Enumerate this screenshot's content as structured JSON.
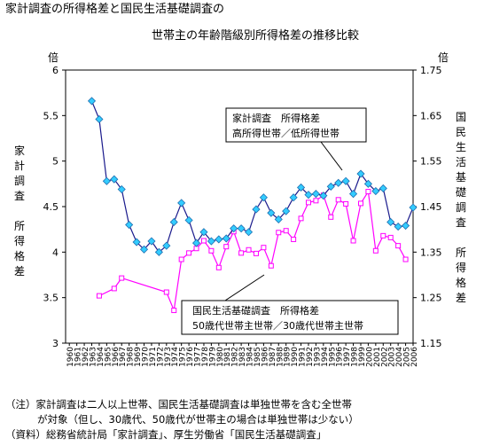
{
  "title_line1": "家計調査の所得格差と国民生活基礎調査の",
  "title_line2": "世帯主の年齢階級別所得格差の推移比較",
  "left_axis_unit": "倍",
  "right_axis_unit": "倍",
  "left_axis_label": [
    "家",
    "計",
    "調",
    "査",
    "",
    "所",
    "得",
    "格",
    "差"
  ],
  "right_axis_label": [
    "国",
    "民",
    "生",
    "活",
    "基",
    "礎",
    "調",
    "査",
    "",
    "所",
    "得",
    "格",
    "差"
  ],
  "notes": {
    "line1": "（注）家計調査は二人以上世帯、国民生活基礎調査は単独世帯を含む全世帯",
    "line2": "が対象（但し、30歳代、50歳代が世帯主の場合は単独世帯は少ない）",
    "line3": "（資料）総務省統計局「家計調査」、厚生労働省「国民生活基礎調査」"
  },
  "colors": {
    "kakei": "#1a1a8c",
    "kakei_marker": "#33ccff",
    "kokumin": "#ff00ff",
    "kokumin_marker": "#ffffff"
  },
  "chart_data": {
    "type": "line",
    "x": [
      1960,
      1961,
      1962,
      1963,
      1964,
      1965,
      1966,
      1967,
      1968,
      1969,
      1970,
      1971,
      1972,
      1973,
      1974,
      1975,
      1976,
      1977,
      1978,
      1979,
      1980,
      1981,
      1982,
      1983,
      1984,
      1985,
      1986,
      1987,
      1988,
      1989,
      1990,
      1991,
      1992,
      1993,
      1994,
      1995,
      1996,
      1997,
      1998,
      1999,
      2000,
      2001,
      2002,
      2003,
      2004,
      2005,
      2006
    ],
    "xlabels": [
      "1960",
      "1961",
      "1962",
      "1963",
      "1964",
      "1965",
      "1966",
      "1967",
      "1968",
      "1969",
      "1970",
      "1971",
      "1972",
      "1973",
      "1974",
      "1975",
      "1976",
      "1977",
      "1978",
      "1979",
      "1980",
      "1981",
      "1982",
      "1983",
      "1984",
      "1985",
      "1986",
      "1987",
      "1988",
      "1989",
      "1990",
      "1991",
      "1992",
      "1993",
      "1994",
      "1995",
      "1996",
      "1997",
      "1998",
      "1999",
      "2000",
      "2001",
      "2002",
      "2003",
      "2004",
      "2005",
      "2006"
    ],
    "left_axis": {
      "min": 3,
      "max": 6,
      "step": 0.5,
      "ticks": [
        "3",
        "3.5",
        "4",
        "4.5",
        "5",
        "5.5",
        "6"
      ]
    },
    "right_axis": {
      "min": 1.15,
      "max": 1.75,
      "step": 0.1,
      "ticks": [
        "1.15",
        "1.25",
        "1.35",
        "1.45",
        "1.55",
        "1.65",
        "1.75"
      ]
    },
    "series": [
      {
        "name": "家計調査　所得格差 高所得世帯／低所得世帯",
        "axis": "left",
        "x": [
          1963,
          1964,
          1965,
          1966,
          1967,
          1968,
          1969,
          1970,
          1971,
          1972,
          1973,
          1974,
          1975,
          1976,
          1977,
          1978,
          1979,
          1980,
          1981,
          1982,
          1983,
          1984,
          1985,
          1986,
          1987,
          1988,
          1989,
          1990,
          1991,
          1992,
          1993,
          1994,
          1995,
          1996,
          1997,
          1998,
          1999,
          2000,
          2001,
          2002,
          2003,
          2004,
          2005,
          2006
        ],
        "values": [
          5.66,
          5.46,
          4.78,
          4.8,
          4.69,
          4.3,
          4.11,
          4.03,
          4.12,
          4.0,
          4.07,
          4.33,
          4.54,
          4.35,
          4.1,
          4.22,
          4.12,
          4.14,
          4.15,
          4.26,
          4.26,
          4.22,
          4.47,
          4.6,
          4.43,
          4.36,
          4.45,
          4.6,
          4.71,
          4.63,
          4.64,
          4.62,
          4.72,
          4.76,
          4.78,
          4.64,
          4.86,
          4.75,
          4.67,
          4.7,
          4.33,
          4.28,
          4.29,
          4.49
        ]
      },
      {
        "name": "国民生活基礎調査　所得格差 50歳代世帯主世帯／30歳代世帯主世帯",
        "axis": "right",
        "x": [
          1964,
          1966,
          1967,
          1973,
          1974,
          1975,
          1976,
          1977,
          1978,
          1979,
          1980,
          1981,
          1982,
          1983,
          1984,
          1985,
          1986,
          1987,
          1988,
          1989,
          1990,
          1991,
          1992,
          1993,
          1994,
          1995,
          1996,
          1997,
          1998,
          1999,
          2000,
          2001,
          2002,
          2003,
          2004,
          2005
        ],
        "values": [
          1.254,
          1.27,
          1.293,
          1.262,
          1.222,
          1.334,
          1.348,
          1.358,
          1.375,
          1.353,
          1.316,
          1.362,
          1.395,
          1.348,
          1.355,
          1.347,
          1.36,
          1.32,
          1.393,
          1.397,
          1.378,
          1.424,
          1.459,
          1.463,
          1.475,
          1.427,
          1.465,
          1.456,
          1.375,
          1.457,
          1.483,
          1.353,
          1.386,
          1.382,
          1.364,
          1.334
        ]
      }
    ],
    "annotations": [
      {
        "lines": [
          "家計調査　所得格差",
          "高所得世帯／低所得世帯"
        ]
      },
      {
        "lines": [
          "国民生活基礎調査　所得格差",
          "50歳代世帯主世帯／30歳代世帯主世帯"
        ]
      }
    ]
  }
}
